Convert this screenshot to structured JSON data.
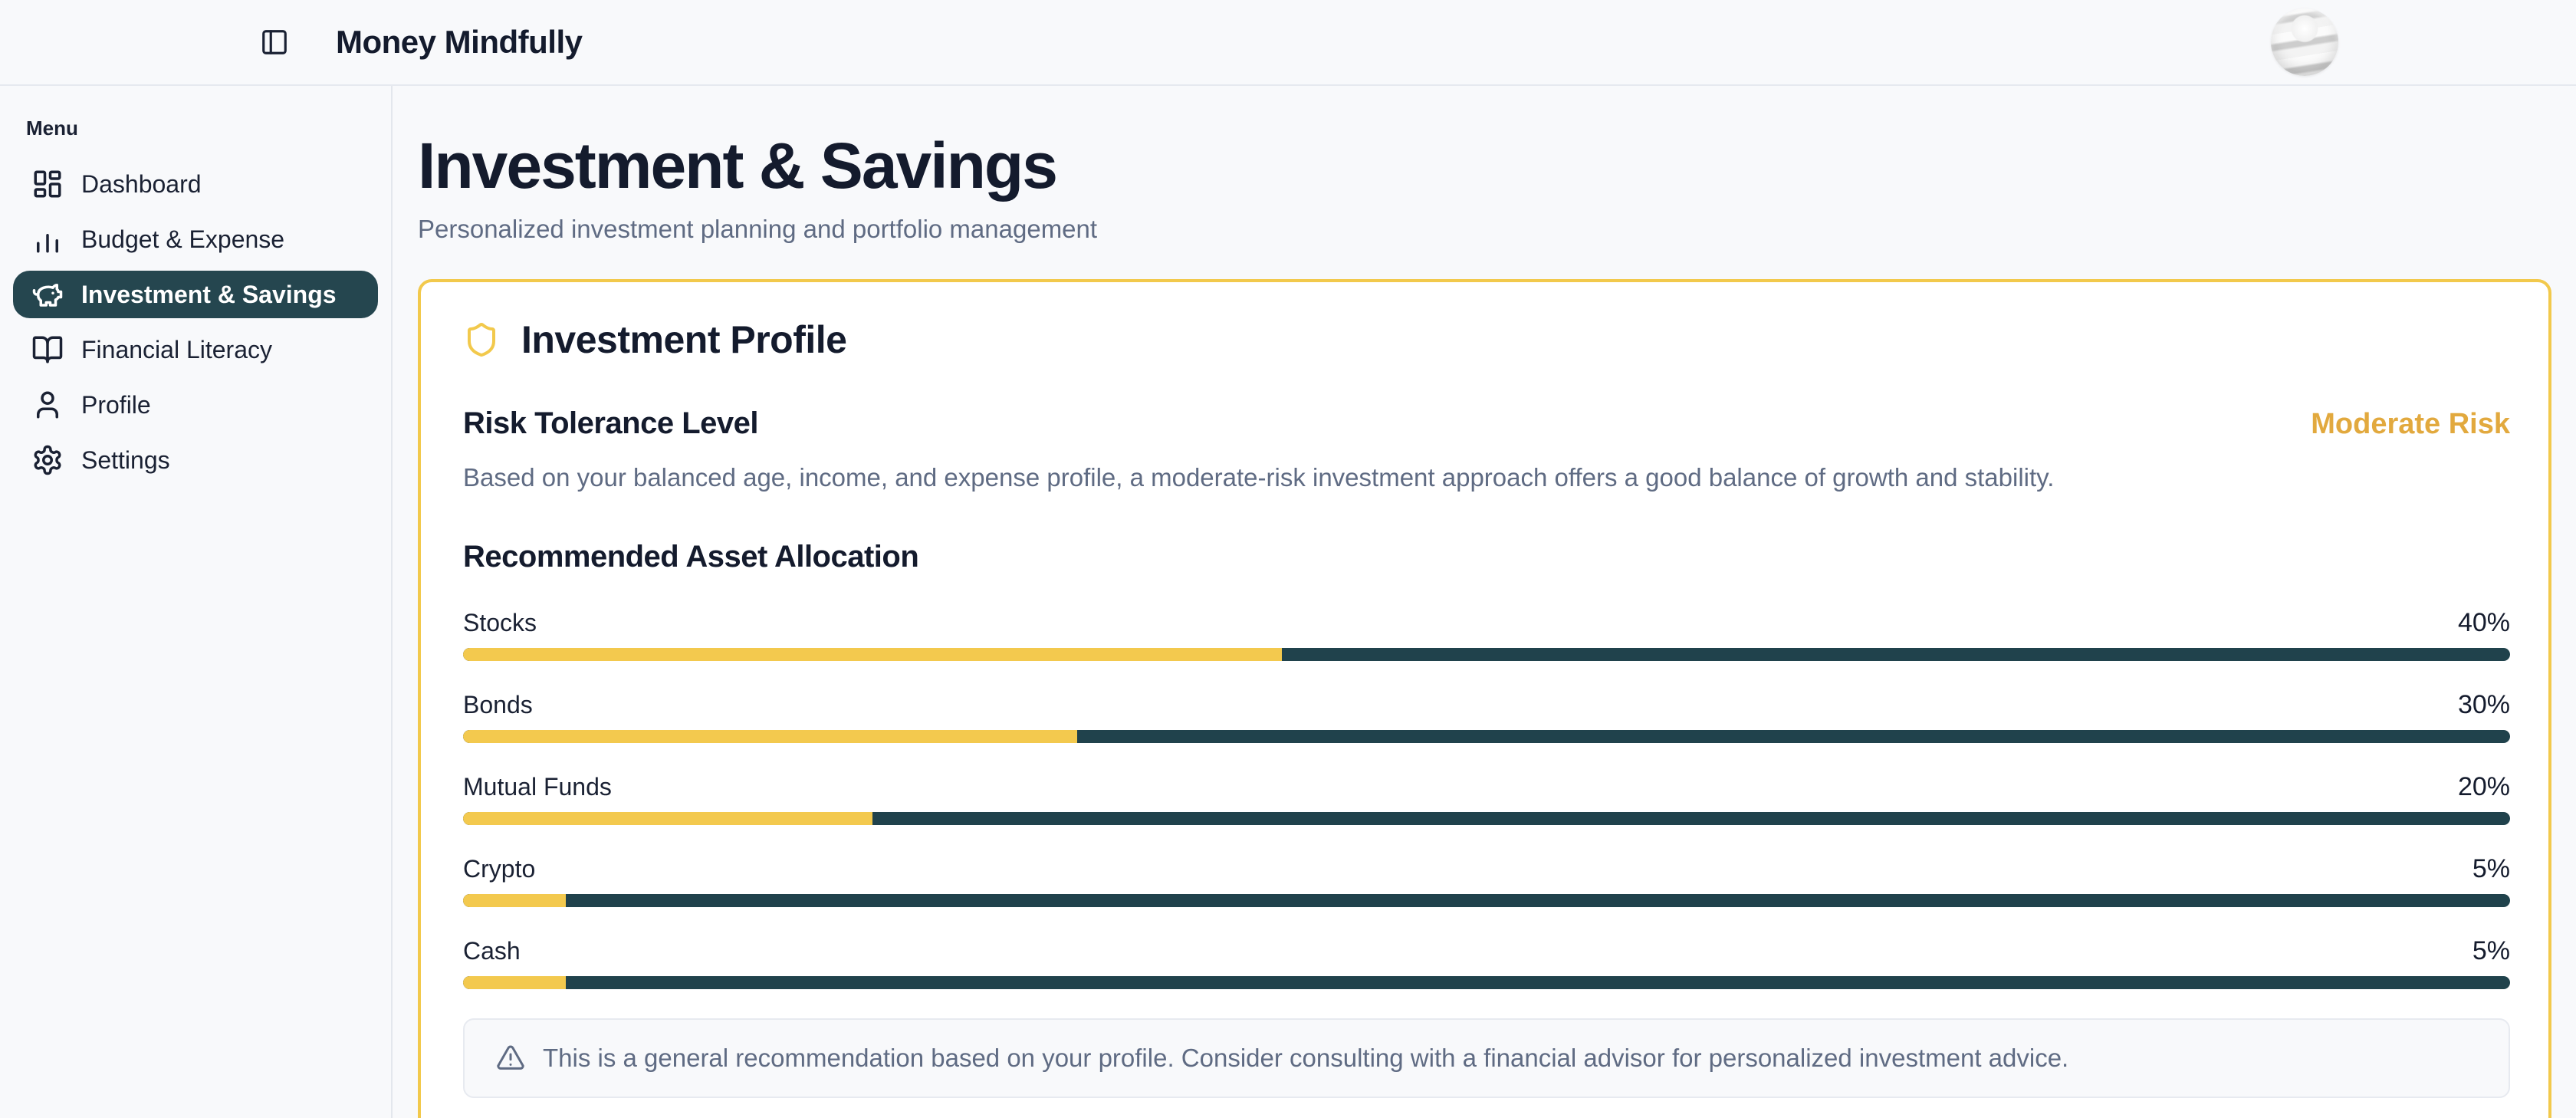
{
  "header": {
    "app_title": "Money Mindfully"
  },
  "sidebar": {
    "menu_label": "Menu",
    "items": [
      {
        "label": "Dashboard",
        "icon": "dashboard-grid-icon",
        "active": false
      },
      {
        "label": "Budget & Expense",
        "icon": "bar-chart-icon",
        "active": false
      },
      {
        "label": "Investment & Savings",
        "icon": "piggy-bank-icon",
        "active": true
      },
      {
        "label": "Financial Literacy",
        "icon": "open-book-icon",
        "active": false
      },
      {
        "label": "Profile",
        "icon": "user-icon",
        "active": false
      },
      {
        "label": "Settings",
        "icon": "gear-icon",
        "active": false
      }
    ]
  },
  "page": {
    "title": "Investment & Savings",
    "subtitle": "Personalized investment planning and portfolio management"
  },
  "profile_card": {
    "title": "Investment Profile",
    "risk": {
      "heading": "Risk Tolerance Level",
      "level_badge": "Moderate Risk",
      "description": "Based on your balanced age, income, and expense profile, a moderate-risk investment approach offers a good balance of growth and stability."
    },
    "allocation": {
      "heading": "Recommended Asset Allocation",
      "items": [
        {
          "label": "Stocks",
          "percent_label": "40%",
          "value": 40
        },
        {
          "label": "Bonds",
          "percent_label": "30%",
          "value": 30
        },
        {
          "label": "Mutual Funds",
          "percent_label": "20%",
          "value": 20
        },
        {
          "label": "Crypto",
          "percent_label": "5%",
          "value": 5
        },
        {
          "label": "Cash",
          "percent_label": "5%",
          "value": 5
        }
      ]
    },
    "disclaimer": "This is a general recommendation based on your profile. Consider consulting with a financial advisor for personalized investment advice."
  },
  "chart_data": {
    "type": "bar",
    "title": "Recommended Asset Allocation",
    "categories": [
      "Stocks",
      "Bonds",
      "Mutual Funds",
      "Crypto",
      "Cash"
    ],
    "values": [
      40,
      30,
      20,
      5,
      5
    ],
    "unit": "%",
    "xlim": [
      0,
      100
    ],
    "orientation": "horizontal",
    "fill_color": "#F3C94E",
    "track_color": "#20424C"
  },
  "colors": {
    "accent_yellow": "#F2C94C",
    "gold_text": "#E2A93E",
    "dark_teal_track": "#20424C",
    "sidebar_active_bg": "#25464F",
    "text_dark": "#141B2D",
    "text_gray": "#5F6B83",
    "page_bg": "#F8F9FB",
    "card_bg": "#FFFFFF"
  }
}
